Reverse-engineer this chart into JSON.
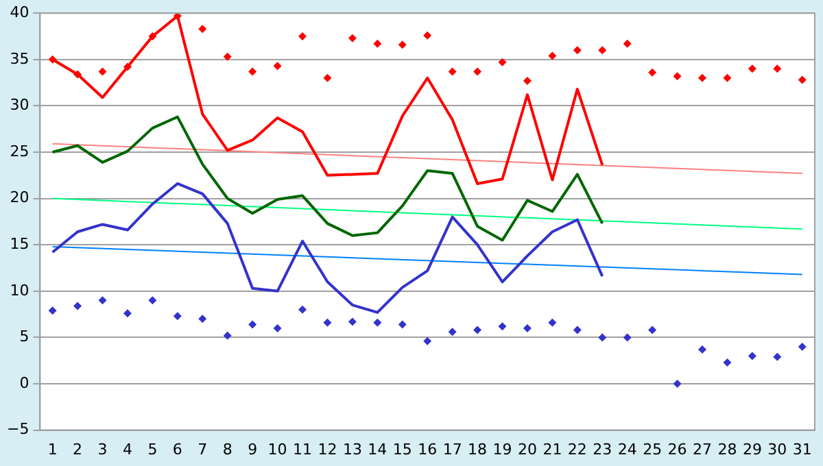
{
  "chart_data": {
    "type": "line",
    "x": [
      1,
      2,
      3,
      4,
      5,
      6,
      7,
      8,
      9,
      10,
      11,
      12,
      13,
      14,
      15,
      16,
      17,
      18,
      19,
      20,
      21,
      22,
      23,
      24,
      25,
      26,
      27,
      28,
      29,
      30,
      31
    ],
    "xlim": [
      0.5,
      31.5
    ],
    "xticks": [
      1,
      2,
      3,
      4,
      5,
      6,
      7,
      8,
      9,
      10,
      11,
      12,
      13,
      14,
      15,
      16,
      17,
      18,
      19,
      20,
      21,
      22,
      23,
      24,
      25,
      26,
      27,
      28,
      29,
      30,
      31
    ],
    "ylim": [
      -5,
      40
    ],
    "yticks": [
      -5,
      0,
      5,
      10,
      15,
      20,
      25,
      30,
      35,
      40
    ],
    "grid": "y",
    "legend": false,
    "series": [
      {
        "type": "line",
        "color": "#ff0000",
        "marker": "none",
        "x": [
          1,
          2,
          3,
          4,
          5,
          6,
          7,
          8,
          9,
          10,
          11,
          12,
          13,
          14,
          15,
          16,
          17,
          18,
          19,
          20,
          21,
          22,
          23
        ],
        "values": [
          35,
          33.4,
          30.9,
          34.2,
          37.5,
          39.7,
          29.1,
          25.2,
          26.3,
          28.7,
          27.2,
          22.5,
          22.6,
          22.7,
          28.9,
          33,
          28.5,
          21.6,
          22.1,
          31.2,
          22,
          31.8,
          23.6
        ]
      },
      {
        "type": "line",
        "color": "#006600",
        "marker": "none",
        "x": [
          1,
          2,
          3,
          4,
          5,
          6,
          7,
          8,
          9,
          10,
          11,
          12,
          13,
          14,
          15,
          16,
          17,
          18,
          19,
          20,
          21,
          22,
          23
        ],
        "values": [
          25,
          25.7,
          23.9,
          25.1,
          27.6,
          28.8,
          23.7,
          20,
          18.4,
          19.9,
          20.3,
          17.3,
          16,
          16.3,
          19.2,
          23,
          22.7,
          17,
          15.5,
          19.8,
          18.6,
          22.6,
          17.3
        ]
      },
      {
        "type": "line",
        "color": "#3333cc",
        "marker": "none",
        "x": [
          1,
          2,
          3,
          4,
          5,
          6,
          7,
          8,
          9,
          10,
          11,
          12,
          13,
          14,
          15,
          16,
          17,
          18,
          19,
          20,
          21,
          22,
          23
        ],
        "values": [
          14.2,
          16.4,
          17.2,
          16.6,
          19.4,
          21.6,
          20.5,
          17.3,
          10.3,
          10,
          15.4,
          11,
          8.5,
          7.7,
          10.4,
          12.2,
          18,
          15,
          11,
          13.8,
          16.4,
          17.7,
          11.6
        ]
      },
      {
        "type": "scatter",
        "color": "#ff0000",
        "marker": "diamond",
        "values": [
          35,
          33.4,
          33.7,
          34.2,
          37.5,
          39.7,
          38.3,
          35.3,
          33.7,
          34.3,
          37.5,
          33,
          37.3,
          36.7,
          36.6,
          37.6,
          33.7,
          33.7,
          34.7,
          32.7,
          35.4,
          36,
          36,
          36.7,
          33.6,
          33.2,
          33,
          33,
          34,
          34,
          32.8
        ]
      },
      {
        "type": "scatter",
        "color": "#3333cc",
        "marker": "diamond",
        "values": [
          7.9,
          8.4,
          9,
          7.6,
          9,
          7.3,
          7,
          5.2,
          6.4,
          6,
          8,
          6.6,
          6.7,
          6.6,
          6.4,
          4.6,
          5.6,
          5.8,
          6.2,
          6,
          6.6,
          5.8,
          5,
          5,
          5.8,
          0,
          3.7,
          2.3,
          3,
          2.9,
          4
        ]
      },
      {
        "type": "line",
        "color": "#ff8080",
        "marker": "none",
        "x": [
          1,
          31
        ],
        "values": [
          25.9,
          22.7
        ]
      },
      {
        "type": "line",
        "color": "#00ff80",
        "marker": "none",
        "x": [
          1,
          31
        ],
        "values": [
          20,
          16.7
        ]
      },
      {
        "type": "line",
        "color": "#0080ff",
        "marker": "none",
        "x": [
          1,
          31
        ],
        "values": [
          14.8,
          11.8
        ]
      }
    ]
  }
}
